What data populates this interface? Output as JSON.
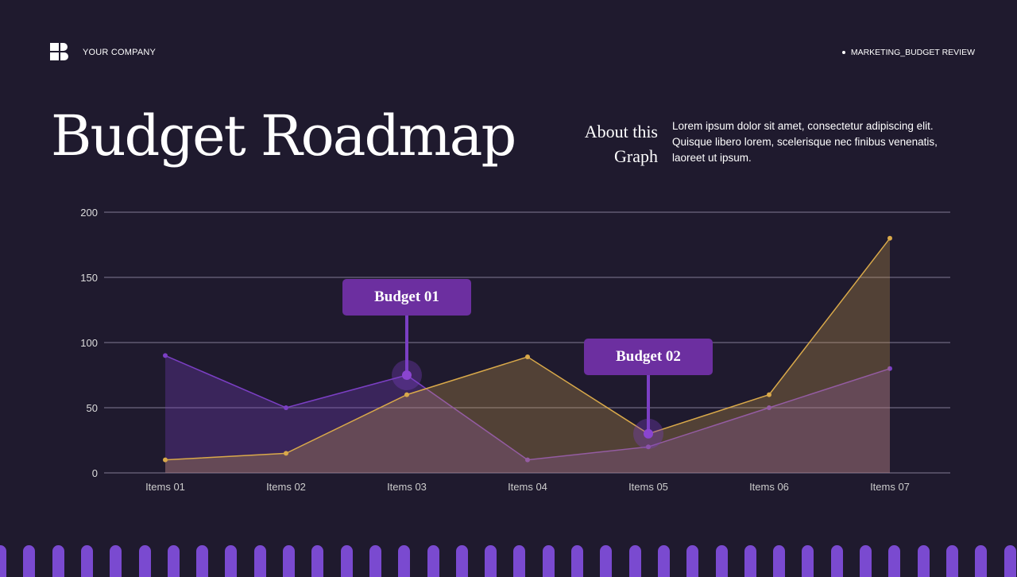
{
  "header": {
    "company": "YOUR COMPANY",
    "section": "MARKETING_BUDGET REVIEW"
  },
  "title": "Budget Roadmap",
  "about": {
    "heading_line1": "About this",
    "heading_line2": "Graph",
    "text": "Lorem ipsum dolor sit amet, consectetur adipiscing elit. Quisque libero lorem, scelerisque nec finibus venenatis, laoreet ut ipsum."
  },
  "callouts": [
    {
      "label": "Budget 01",
      "category": "Items 03",
      "value": 75
    },
    {
      "label": "Budget 02",
      "category": "Items 05",
      "value": 30
    }
  ],
  "colors": {
    "background": "#1f1a2e",
    "purple": "#7b3fc4",
    "gold": "#d9a94a",
    "callout": "#6c2fa0",
    "stripes": "#7a4ad0"
  },
  "chart_data": {
    "type": "area",
    "categories": [
      "Items 01",
      "Items 02",
      "Items 03",
      "Items 04",
      "Items 05",
      "Items 06",
      "Items 07"
    ],
    "series": [
      {
        "values": [
          90,
          50,
          75,
          10,
          20,
          50,
          80
        ],
        "color": "#7b3fc4"
      },
      {
        "values": [
          10,
          15,
          60,
          89,
          30,
          60,
          180
        ],
        "color": "#d9a94a"
      }
    ],
    "ylim": [
      0,
      200
    ],
    "yticks": [
      0,
      50,
      100,
      150,
      200
    ],
    "grid": true
  }
}
